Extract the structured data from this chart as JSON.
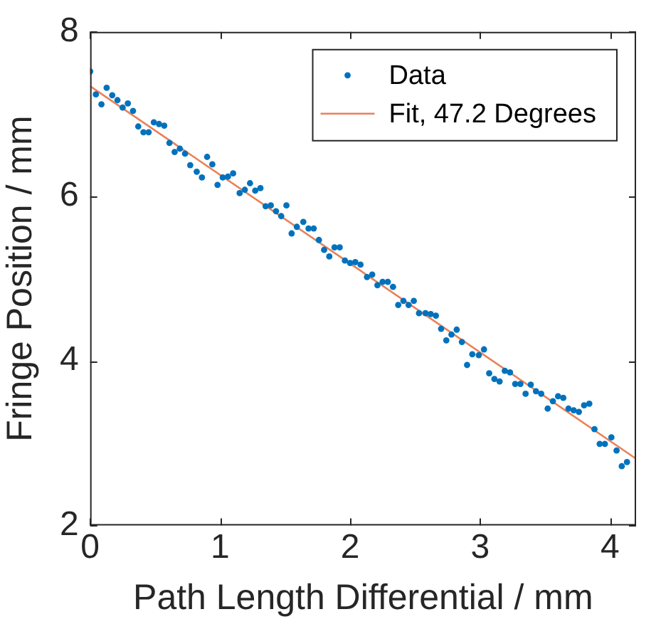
{
  "chart_data": {
    "type": "scatter",
    "xlabel": "Path Length Differential / mm",
    "ylabel": "Fringe Position / mm",
    "xlim": [
      0,
      4.2
    ],
    "ylim": [
      2,
      8
    ],
    "xticks": [
      0,
      1,
      2,
      3,
      4
    ],
    "yticks": [
      2,
      4,
      6,
      8
    ],
    "grid": false,
    "legend": "top right",
    "series": [
      {
        "name": "Data",
        "color": "#0072bd",
        "marker": "circle",
        "x": [
          0,
          0.044,
          0.087,
          0.127,
          0.17,
          0.21,
          0.25,
          0.29,
          0.33,
          0.37,
          0.41,
          0.45,
          0.49,
          0.53,
          0.57,
          0.61,
          0.65,
          0.69,
          0.73,
          0.77,
          0.82,
          0.86,
          0.9,
          0.94,
          0.98,
          1.02,
          1.06,
          1.1,
          1.15,
          1.19,
          1.23,
          1.27,
          1.31,
          1.35,
          1.39,
          1.43,
          1.47,
          1.51,
          1.55,
          1.59,
          1.64,
          1.68,
          1.72,
          1.76,
          1.8,
          1.84,
          1.88,
          1.92,
          1.96,
          2,
          2.04,
          2.08,
          2.13,
          2.17,
          2.21,
          2.25,
          2.29,
          2.33,
          2.37,
          2.41,
          2.45,
          2.49,
          2.53,
          2.58,
          2.62,
          2.66,
          2.7,
          2.74,
          2.78,
          2.82,
          2.86,
          2.9,
          2.94,
          2.99,
          3.03,
          3.07,
          3.11,
          3.15,
          3.19,
          3.23,
          3.27,
          3.31,
          3.35,
          3.39,
          3.43,
          3.47,
          3.52,
          3.56,
          3.6,
          3.64,
          3.68,
          3.72,
          3.76,
          3.8,
          3.84,
          3.88,
          3.92,
          3.96,
          4.01,
          4.05,
          4.09,
          4.13
        ],
        "values": [
          7.52,
          7.24,
          7.12,
          7.32,
          7.23,
          7.17,
          7.08,
          7.13,
          7.04,
          6.85,
          6.78,
          6.78,
          6.9,
          6.88,
          6.86,
          6.65,
          6.54,
          6.58,
          6.52,
          6.38,
          6.3,
          6.23,
          6.48,
          6.39,
          6.14,
          6.23,
          6.24,
          6.28,
          6.04,
          6.08,
          6.16,
          6.07,
          6.1,
          5.88,
          5.89,
          5.82,
          5.76,
          5.89,
          5.55,
          5.63,
          5.69,
          5.61,
          5.61,
          5.47,
          5.35,
          5.27,
          5.38,
          5.38,
          5.22,
          5.19,
          5.2,
          5.17,
          5.02,
          5.05,
          4.92,
          4.96,
          4.96,
          4.9,
          4.68,
          4.73,
          4.68,
          4.73,
          4.58,
          4.58,
          4.57,
          4.55,
          4.39,
          4.25,
          4.32,
          4.38,
          4.23,
          3.95,
          4.08,
          4.07,
          4.14,
          3.85,
          3.78,
          3.75,
          3.88,
          3.86,
          3.72,
          3.72,
          3.6,
          3.71,
          3.63,
          3.6,
          3.42,
          3.51,
          3.57,
          3.55,
          3.42,
          3.4,
          3.38,
          3.46,
          3.48,
          3.17,
          2.99,
          2.99,
          3.07,
          2.91,
          2.72,
          2.77
        ]
      },
      {
        "name": "Fit, 47.2 Degrees",
        "color": "#e8825a",
        "type": "line",
        "x": [
          0,
          4.2
        ],
        "values": [
          7.34,
          2.81
        ]
      }
    ]
  }
}
